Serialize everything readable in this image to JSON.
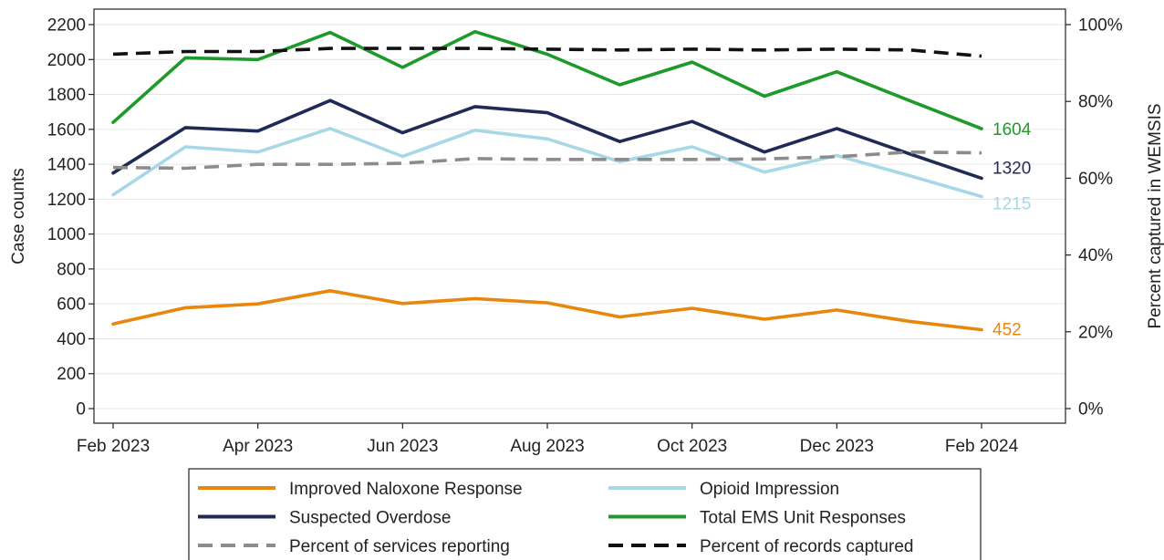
{
  "chart_data": {
    "type": "line",
    "x": [
      "Feb 2023",
      "Mar 2023",
      "Apr 2023",
      "May 2023",
      "Jun 2023",
      "Jul 2023",
      "Aug 2023",
      "Sep 2023",
      "Oct 2023",
      "Nov 2023",
      "Dec 2023",
      "Jan 2024",
      "Feb 2024"
    ],
    "x_tick_labels": [
      "Feb 2023",
      "Apr 2023",
      "Jun 2023",
      "Aug 2023",
      "Oct 2023",
      "Dec 2023",
      "Feb 2024"
    ],
    "title": "",
    "xlabel": "",
    "ylabel": "Case counts",
    "ylabel_right": "Percent captured in WEMSIS",
    "ylim": [
      0,
      2200
    ],
    "yticks": [
      0,
      200,
      400,
      600,
      800,
      1000,
      1200,
      1400,
      1600,
      1800,
      2000,
      2200
    ],
    "ylim_right": [
      0,
      100
    ],
    "yticks_right": [
      0,
      20,
      40,
      60,
      80,
      100
    ],
    "yticks_right_labels": [
      "0%",
      "20%",
      "40%",
      "60%",
      "80%",
      "100%"
    ],
    "grid": "horizontal",
    "legend_position": "bottom",
    "series": [
      {
        "name": "Improved Naloxone Response",
        "axis": "left",
        "color": "#e8870e",
        "dash": "solid",
        "values": [
          485,
          578,
          600,
          675,
          602,
          630,
          606,
          525,
          575,
          512,
          565,
          500,
          452
        ],
        "end_label": "452"
      },
      {
        "name": "Opioid Impression",
        "axis": "left",
        "color": "#a8d8e8",
        "dash": "solid",
        "values": [
          1225,
          1500,
          1470,
          1605,
          1445,
          1595,
          1545,
          1415,
          1500,
          1355,
          1450,
          1335,
          1215
        ],
        "end_label": "1215"
      },
      {
        "name": "Suspected Overdose",
        "axis": "left",
        "color": "#1f2a56",
        "dash": "solid",
        "values": [
          1350,
          1610,
          1590,
          1765,
          1580,
          1730,
          1695,
          1530,
          1645,
          1470,
          1605,
          1460,
          1320
        ],
        "end_label": "1320"
      },
      {
        "name": "Total EMS Unit Responses",
        "axis": "left",
        "color": "#1f9a2a",
        "dash": "solid",
        "values": [
          1640,
          2010,
          2000,
          2155,
          1955,
          2160,
          2030,
          1855,
          1985,
          1790,
          1930,
          1765,
          1604
        ],
        "end_label": "1604"
      },
      {
        "name": "Percent of services reporting",
        "axis": "right",
        "color": "#8c8c8c",
        "dash": "dashed",
        "values": [
          62.8,
          62.6,
          63.6,
          63.6,
          63.9,
          65.1,
          64.9,
          64.9,
          64.9,
          65.0,
          65.6,
          66.8,
          66.6
        ]
      },
      {
        "name": "Percent of records captured",
        "axis": "right",
        "color": "#111111",
        "dash": "dashed",
        "values": [
          92.3,
          93.0,
          93.0,
          93.8,
          93.8,
          93.8,
          93.6,
          93.4,
          93.6,
          93.4,
          93.6,
          93.4,
          91.8
        ]
      }
    ]
  }
}
